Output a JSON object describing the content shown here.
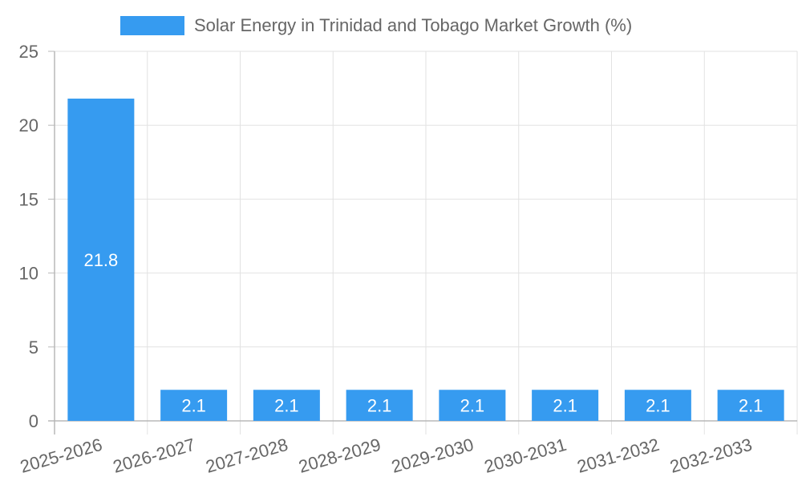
{
  "chart_data": {
    "type": "bar",
    "title": "",
    "xlabel": "",
    "ylabel": "",
    "legend": {
      "position": "top",
      "label": "Solar Energy in Trinidad and Tobago Market Growth (%)"
    },
    "categories": [
      "2025-2026",
      "2026-2027",
      "2027-2028",
      "2028-2029",
      "2029-2030",
      "2030-2031",
      "2031-2032",
      "2032-2033"
    ],
    "series": [
      {
        "name": "Solar Energy in Trinidad and Tobago Market Growth (%)",
        "values": [
          21.8,
          2.1,
          2.1,
          2.1,
          2.1,
          2.1,
          2.1,
          2.1
        ],
        "color": "#369bf0"
      }
    ],
    "ylim": [
      0,
      25
    ],
    "yticks": [
      0,
      5,
      10,
      15,
      20,
      25
    ],
    "grid": true,
    "data_labels": true
  },
  "colors": {
    "bar": "#369bf0",
    "grid": "#e2e2e2",
    "axis": "#b8b8b8",
    "text": "#666666",
    "data_label": "#ffffff"
  }
}
